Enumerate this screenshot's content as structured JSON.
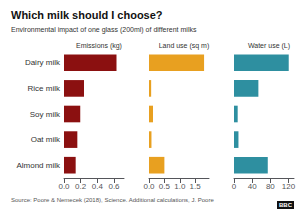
{
  "title": "Which milk should I choose?",
  "subtitle": "Environmental impact of one glass (200ml) of different milks",
  "annotations": [
    "Source: Poore & Nemecek (2018), Science. Additional calculations, J. Poore",
    "BBC"
  ],
  "chart_data": [
    {
      "type": "bar",
      "orientation": "horizontal",
      "title": "Emissions (kg)",
      "categories": [
        "Dairy milk",
        "Rice milk",
        "Soy milk",
        "Oat milk",
        "Almond milk"
      ],
      "values": [
        0.63,
        0.24,
        0.195,
        0.16,
        0.14
      ],
      "color": "#8B1010",
      "xlim": [
        0,
        0.72
      ],
      "xticks": [
        {
          "value": 0.0,
          "label": "0.0"
        },
        0.2,
        0.4,
        0.6
      ],
      "grid": false
    },
    {
      "type": "bar",
      "orientation": "horizontal",
      "title": "Land use (sq m)",
      "categories": [
        "Dairy milk",
        "Rice milk",
        "Soy milk",
        "Oat milk",
        "Almond milk"
      ],
      "values": [
        1.79,
        0.07,
        0.13,
        0.08,
        0.5
      ],
      "color": "#E8A020",
      "xlim": [
        0,
        1.95
      ],
      "xticks": [
        {
          "value": 0.0,
          "label": "0.0"
        },
        0.5,
        {
          "value": 1.0,
          "label": "1.0"
        },
        1.5
      ],
      "grid": false,
      "tick_labels": "x"
    },
    {
      "type": "bar",
      "orientation": "horizontal",
      "title": "Water use (L)",
      "categories": [
        "Dairy milk",
        "Rice milk",
        "Soy milk",
        "Oat milk",
        "Almond milk"
      ],
      "values": [
        120.4,
        53.6,
        8.1,
        9.8,
        74.3
      ],
      "color": "#2E8FA0",
      "xlim": [
        0,
        132
      ],
      "xticks": [
        0,
        40,
        80,
        120
      ],
      "grid": false,
      "tick_labels": "x"
    }
  ]
}
